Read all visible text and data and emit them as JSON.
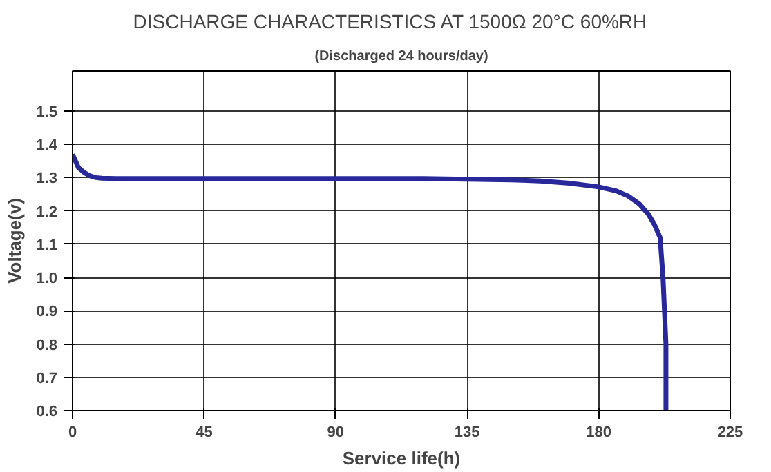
{
  "chart_data": {
    "type": "line",
    "title": "DISCHARGE CHARACTERISTICS AT 1500Ω   20°C   60%RH",
    "subtitle": "(Discharged 24 hours/day)",
    "xlabel": "Service life(h)",
    "ylabel": "Voltage(v)",
    "x": [
      0,
      1,
      2,
      4,
      6,
      8,
      10,
      15,
      30,
      60,
      90,
      120,
      135,
      150,
      160,
      170,
      180,
      186,
      190,
      194,
      197,
      199,
      200,
      201,
      202,
      203,
      203
    ],
    "series": [
      {
        "color": "#28289a",
        "values": [
          1.37,
          1.35,
          1.33,
          1.315,
          1.305,
          1.3,
          1.298,
          1.297,
          1.297,
          1.297,
          1.297,
          1.297,
          1.295,
          1.293,
          1.29,
          1.283,
          1.272,
          1.26,
          1.245,
          1.22,
          1.19,
          1.16,
          1.14,
          1.12,
          1.0,
          0.8,
          0.6
        ]
      }
    ],
    "xlim": [
      0,
      225
    ],
    "xticks": [
      0,
      45,
      90,
      135,
      180,
      225
    ],
    "ylim": [
      0.6,
      1.62
    ],
    "yticks": [
      0.6,
      0.7,
      0.8,
      0.9,
      {
        "value": 1,
        "label": "1.0"
      },
      1.1,
      1.2,
      1.3,
      1.4,
      1.5
    ],
    "grid": true,
    "line_style": "solid",
    "marker": "none"
  }
}
